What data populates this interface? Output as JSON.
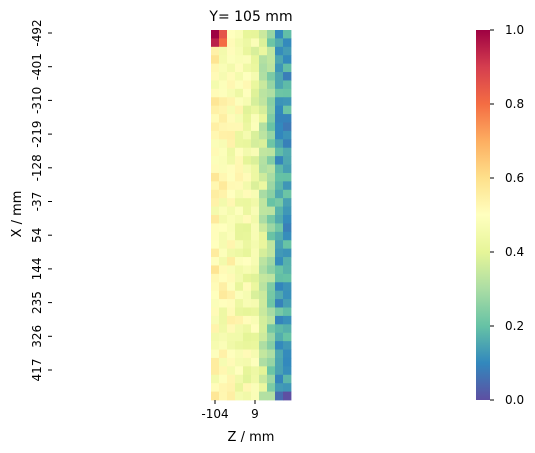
{
  "chart_data": [
    {
      "type": "heatmap",
      "title": "Y= 105 mm",
      "xlabel": "Z / mm",
      "ylabel": "X / mm",
      "x_tick_labels": [
        "-104",
        "9"
      ],
      "y_tick_labels": [
        "-492",
        "-401",
        "-310",
        "-219",
        "-128",
        "-37",
        "54",
        "144",
        "235",
        "326",
        "417"
      ],
      "n_rows": 44,
      "n_cols": 10,
      "value_range": [
        0.0,
        1.0
      ],
      "colormap": "Spectral_r",
      "column_profile": [
        0.52,
        0.5,
        0.5,
        0.47,
        0.46,
        0.44,
        0.36,
        0.27,
        0.16,
        0.14
      ],
      "hot_cells": [
        {
          "row": 0,
          "col": 0,
          "value": 1.0
        },
        {
          "row": 0,
          "col": 1,
          "value": 0.85
        },
        {
          "row": 1,
          "col": 0,
          "value": 0.95
        },
        {
          "row": 1,
          "col": 1,
          "value": 0.8
        },
        {
          "row": 43,
          "col": 9,
          "value": 0.0
        },
        {
          "row": 43,
          "col": 8,
          "value": 0.05
        }
      ],
      "colorbar": {
        "ticks": [
          "0.0",
          "0.2",
          "0.4",
          "0.6",
          "0.8",
          "1.0"
        ],
        "tick_values": [
          0.0,
          0.2,
          0.4,
          0.6,
          0.8,
          1.0
        ]
      }
    }
  ]
}
